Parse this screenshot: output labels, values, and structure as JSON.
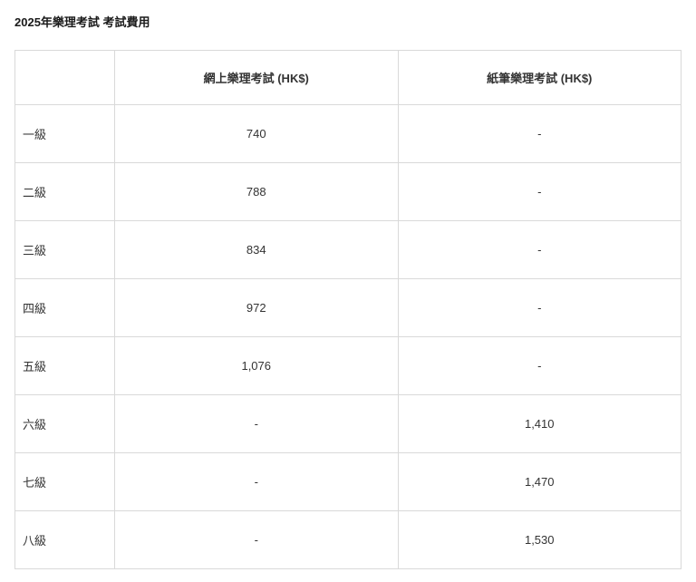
{
  "title": "2025年樂理考試 考試費用",
  "table": {
    "columns": [
      "",
      "網上樂理考試 (HK$)",
      "紙筆樂理考試 (HK$)"
    ],
    "rows": [
      {
        "level": "一級",
        "online": "740",
        "paper": "-"
      },
      {
        "level": "二級",
        "online": "788",
        "paper": "-"
      },
      {
        "level": "三級",
        "online": "834",
        "paper": "-"
      },
      {
        "level": "四級",
        "online": "972",
        "paper": "-"
      },
      {
        "level": "五級",
        "online": "1,076",
        "paper": "-"
      },
      {
        "level": "六級",
        "online": "-",
        "paper": "1,410"
      },
      {
        "level": "七級",
        "online": "-",
        "paper": "1,470"
      },
      {
        "level": "八級",
        "online": "-",
        "paper": "1,530"
      }
    ],
    "border_color": "#d9d9d9",
    "text_color": "#333333",
    "header_fontsize": 13,
    "cell_fontsize": 13,
    "background_color": "#ffffff"
  }
}
